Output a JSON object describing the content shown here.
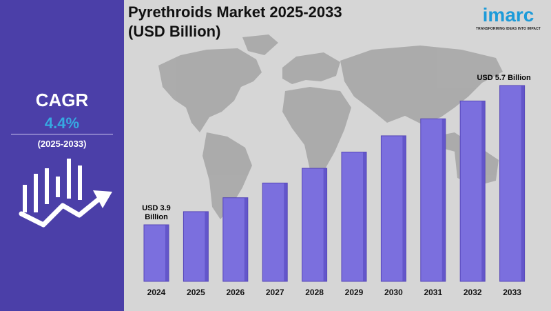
{
  "cagr": {
    "title": "CAGR",
    "value": "4.4%",
    "period": "(2025-2033)"
  },
  "logo": {
    "word": "imarc",
    "tagline": "TRANSFORMING IDEAS INTO IMPACT"
  },
  "colors": {
    "panel": "#4b3fa8",
    "accent": "#36a9e1",
    "bar": "#7b6fde",
    "bar_edge": "#5646b8"
  },
  "icons": {
    "growth": "bar-chart-with-arrow-icon",
    "map": "world-map-icon"
  },
  "chart_data": {
    "type": "bar",
    "title": "Pyrethroids Market 2025-2033 (USD Billion)",
    "title_lines": [
      "Pyrethroids Market 2025-2033",
      "(USD Billion)"
    ],
    "categories": [
      "2024",
      "2025",
      "2026",
      "2027",
      "2028",
      "2029",
      "2030",
      "2031",
      "2032",
      "2033"
    ],
    "values": [
      3.9,
      4.07,
      4.25,
      4.44,
      4.63,
      4.84,
      5.05,
      5.27,
      5.5,
      5.7
    ],
    "xlabel": "",
    "ylabel": "",
    "ylim": [
      0,
      6.0
    ],
    "grid": false,
    "annotations": [
      {
        "category": "2024",
        "text": "USD 3.9 Billion",
        "lines": [
          "USD 3.9",
          "Billion"
        ]
      },
      {
        "category": "2033",
        "text": "USD 5.7 Billion",
        "lines": [
          "USD 5.7 Billion"
        ]
      }
    ]
  }
}
